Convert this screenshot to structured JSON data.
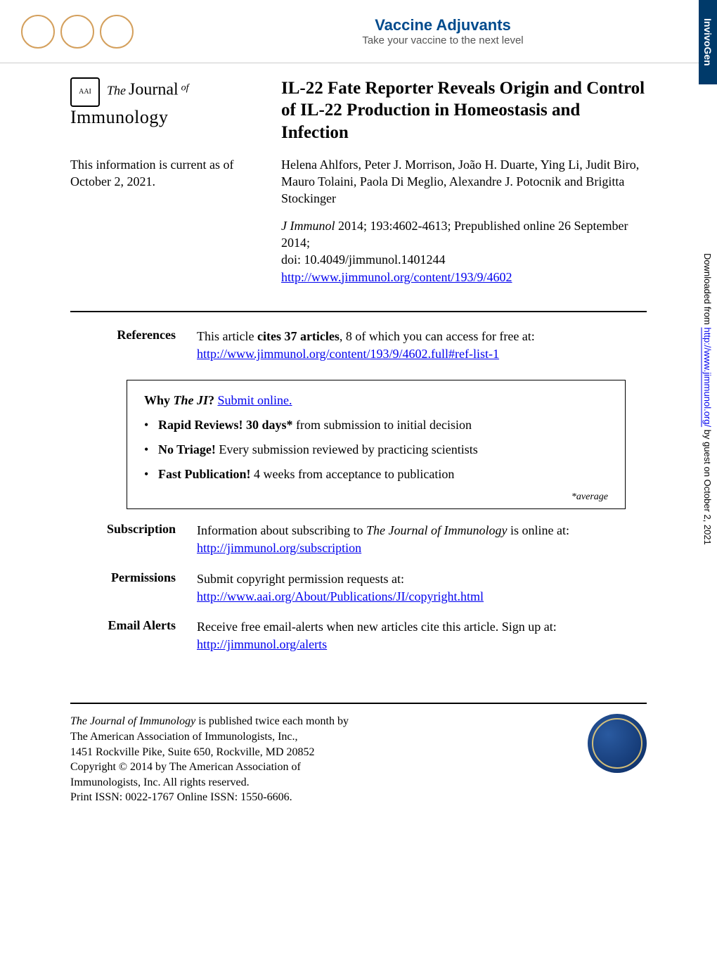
{
  "banner": {
    "title": "Vaccine Adjuvants",
    "subtitle": "Take your vaccine to the next level",
    "side_tab": "InvivoGen"
  },
  "journal_logo": {
    "the": "The",
    "journal": "Journal",
    "of": "of",
    "immunology": "Immunology",
    "badge": "AAI"
  },
  "article": {
    "title": "IL-22 Fate Reporter Reveals Origin and Control of IL-22 Production in Homeostasis and Infection",
    "current_as_label": "This information is current as of October 2, 2021.",
    "authors": "Helena Ahlfors, Peter J. Morrison, João H. Duarte, Ying Li, Judit Biro, Mauro Tolaini, Paola Di Meglio, Alexandre J. Potocnik and Brigitta Stockinger",
    "citation_journal": "J Immunol",
    "citation_rest": " 2014; 193:4602-4613; Prepublished online 26 September 2014;",
    "doi": "doi: 10.4049/jimmunol.1401244",
    "url": "http://www.jimmunol.org/content/193/9/4602"
  },
  "references": {
    "label": "References",
    "text_a": "This article ",
    "text_bold": "cites 37 articles",
    "text_b": ", 8 of which you can access for free at:",
    "url": "http://www.jimmunol.org/content/193/9/4602.full#ref-list-1"
  },
  "why_box": {
    "title_a": "Why ",
    "title_ji": "The JI",
    "title_b": "? ",
    "submit_link": "Submit online.",
    "bullets": [
      {
        "bold": "Rapid Reviews! 30 days*",
        "rest": " from submission to initial decision"
      },
      {
        "bold": "No Triage!",
        "rest": " Every submission reviewed by practicing scientists"
      },
      {
        "bold": "Fast Publication!",
        "rest": " 4 weeks from acceptance to publication"
      }
    ],
    "avg_note": "*average"
  },
  "meta": {
    "subscription": {
      "label": "Subscription",
      "text_a": "Information about subscribing to ",
      "text_ji": "The Journal of Immunology",
      "text_b": " is online at:",
      "url": "http://jimmunol.org/subscription"
    },
    "permissions": {
      "label": "Permissions",
      "text": "Submit copyright permission requests at:",
      "url": "http://www.aai.org/About/Publications/JI/copyright.html"
    },
    "alerts": {
      "label": "Email Alerts",
      "text": "Receive free email-alerts when new articles cite this article. Sign up at:",
      "url": "http://jimmunol.org/alerts"
    }
  },
  "footer": {
    "line1_ji": "The Journal of Immunology",
    "line1_rest": " is published twice each month by",
    "line2": "The American Association of Immunologists, Inc.,",
    "line3": "1451 Rockville Pike, Suite 650, Rockville, MD 20852",
    "line4": "Copyright © 2014 by The American Association of",
    "line5": "Immunologists, Inc. All rights reserved.",
    "line6": "Print ISSN: 0022-1767 Online ISSN: 1550-6606."
  },
  "margin": {
    "text_a": "Downloaded from ",
    "url": "http://www.jimmunol.org/",
    "text_b": " by guest on October 2, 2021"
  }
}
